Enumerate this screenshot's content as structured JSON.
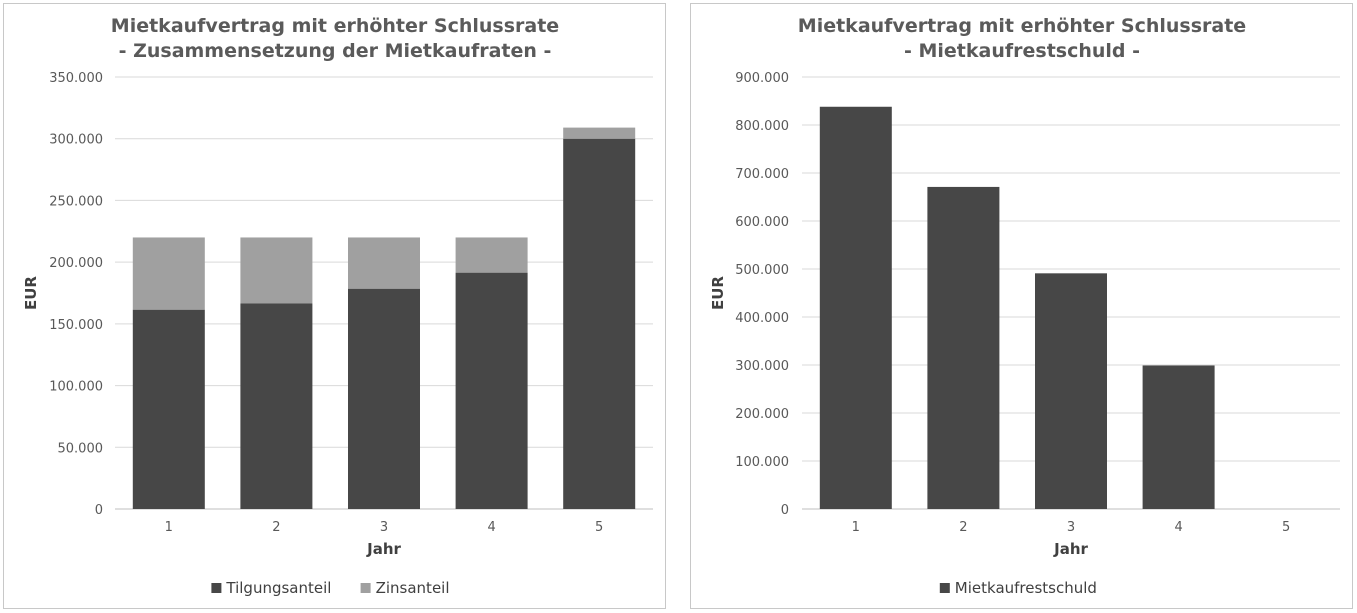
{
  "chart_data": [
    {
      "type": "bar",
      "stacked": true,
      "title": [
        "Mietkaufvertrag  mit erhöhter Schlussrate",
        "- Zusammensetzung der Mietkaufraten -"
      ],
      "xlabel": "Jahr",
      "ylabel": "EUR",
      "categories": [
        "1",
        "2",
        "3",
        "4",
        "5"
      ],
      "ylim": [
        0,
        350000
      ],
      "yticks": [
        "0",
        "50.000",
        "100.000",
        "150.000",
        "200.000",
        "250.000",
        "300.000",
        "350.000"
      ],
      "ytick_step": 50000,
      "grid": true,
      "legend_position": "bottom",
      "series": [
        {
          "name": "Tilgungsanteil",
          "values": [
            161500,
            166500,
            178500,
            191500,
            300000
          ],
          "color": "#474747"
        },
        {
          "name": "Zinsanteil",
          "values": [
            58500,
            53500,
            41500,
            28500,
            9000
          ],
          "color": "#a0a0a0"
        }
      ]
    },
    {
      "type": "bar",
      "title": [
        "Mietkaufvertrag  mit erhöhter Schlussrate",
        "- Mietkaufrestschuld -"
      ],
      "xlabel": "Jahr",
      "ylabel": "EUR",
      "categories": [
        "1",
        "2",
        "3",
        "4",
        "5"
      ],
      "ylim": [
        0,
        900000
      ],
      "yticks": [
        "0",
        "100.000",
        "200.000",
        "300.000",
        "400.000",
        "500.000",
        "600.000",
        "700.000",
        "800.000",
        "900.000"
      ],
      "ytick_step": 100000,
      "grid": true,
      "legend_position": "bottom",
      "series": [
        {
          "name": "Mietkaufrestschuld",
          "values": [
            838000,
            671000,
            491000,
            299000,
            0
          ],
          "color": "#474747"
        }
      ]
    }
  ]
}
